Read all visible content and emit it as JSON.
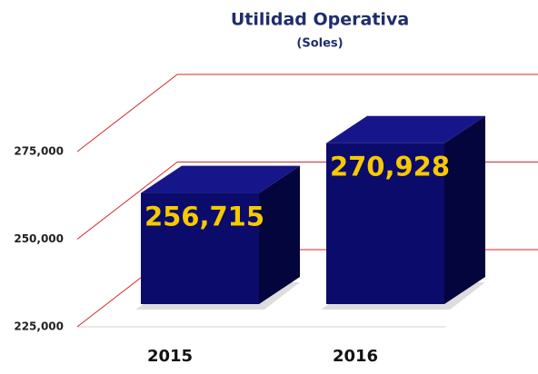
{
  "chart_data": {
    "type": "bar3d",
    "title": "Utilidad Operativa",
    "subtitle": "(Soles)",
    "categories": [
      "2015",
      "2016"
    ],
    "values": [
      256715,
      270928
    ],
    "value_labels": [
      "256,715",
      "270,928"
    ],
    "color": "#0b0b6b",
    "label_color": "#f7c900",
    "ylim": [
      225000,
      275000
    ],
    "yticks": [
      {
        "value": 225000,
        "label": "225,000"
      },
      {
        "value": 250000,
        "label": "250,000"
      },
      {
        "value": 275000,
        "label": "275,000"
      }
    ],
    "grid": true,
    "grid_color": "#d9262a"
  }
}
